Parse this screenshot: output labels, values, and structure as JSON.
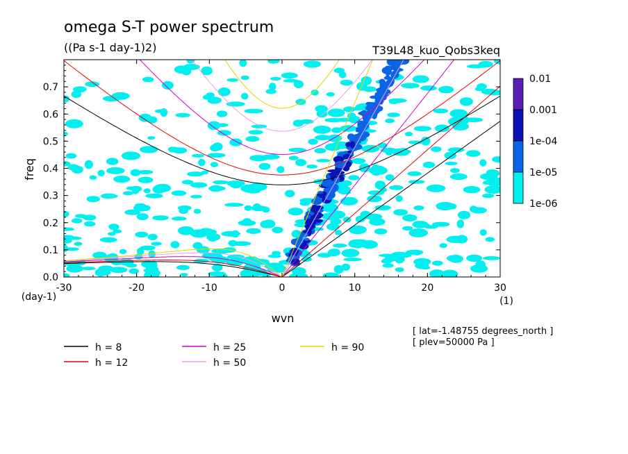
{
  "chart_data": {
    "type": "heatmap",
    "title": "omega S-T power spectrum",
    "subtitle": "((Pa s-1 day-1)2)",
    "run_label": "T39L48_kuo_Qobs3keq",
    "xlabel": "wvn",
    "ylabel": "freq",
    "x_unit": "(1)",
    "y_unit": "(day-1)",
    "xlim": [
      -30,
      30
    ],
    "ylim": [
      0,
      0.8
    ],
    "x_ticks": [
      -30,
      -20,
      -10,
      0,
      10,
      20,
      30
    ],
    "y_ticks": [
      0.0,
      0.1,
      0.2,
      0.3,
      0.4,
      0.5,
      0.6,
      0.7
    ],
    "colorbar": {
      "labels": [
        "0.01",
        "0.001",
        "1e-04",
        "1e-05",
        "1e-06"
      ],
      "colors": [
        "#5a1eb4",
        "#0a14b4",
        "#0a64e6",
        "#00f0f0"
      ]
    },
    "dispersion_curves": [
      {
        "name": "h =  8",
        "h": 8,
        "color": "#000000"
      },
      {
        "name": "h = 12",
        "h": 12,
        "color": "#e60000"
      },
      {
        "name": "h = 25",
        "h": 25,
        "color": "#d200c8"
      },
      {
        "name": "h = 50",
        "h": 50,
        "color": "#e6a0e6"
      },
      {
        "name": "h = 90",
        "h": 90,
        "color": "#e6d200"
      }
    ],
    "info_lines": [
      "[ lat=-1.48755 degrees_north ]",
      "[ plev=50000 Pa ]"
    ]
  }
}
